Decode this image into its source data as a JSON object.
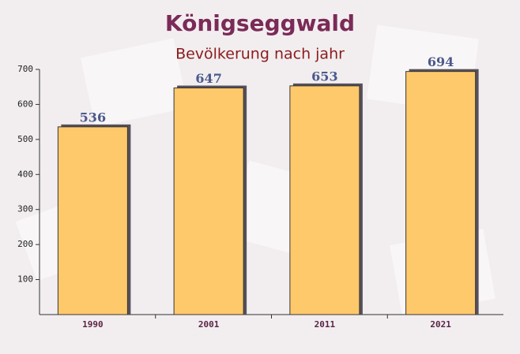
{
  "chart_data": {
    "type": "bar",
    "title": "Königseggwald",
    "subtitle": "Bevölkerung nach jahr",
    "categories": [
      "1990",
      "2001",
      "2011",
      "2021"
    ],
    "values": [
      536,
      647,
      653,
      694
    ],
    "color": "#fdc96b",
    "ylim": [
      0,
      700
    ],
    "yticks": [
      100,
      200,
      300,
      400,
      500,
      600,
      700
    ]
  }
}
